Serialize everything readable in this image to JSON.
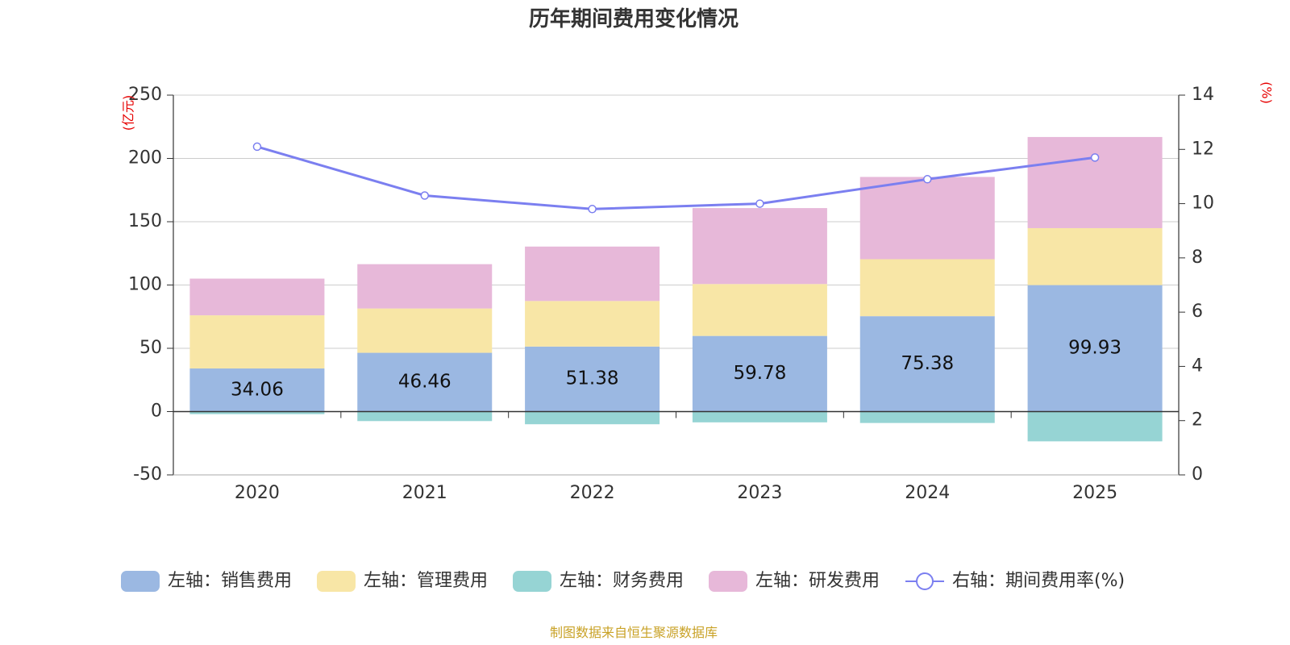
{
  "colors": {
    "sales": "#9bb8e2",
    "admin": "#f8e6a6",
    "finance": "#96d4d4",
    "rd": "#e7b8d9",
    "rate": "#7b7ff0",
    "unit": "#e60000",
    "footer": "#c9a227"
  },
  "chart_data": {
    "type": "bar",
    "stacked": true,
    "title": "历年期间费用变化情况",
    "categories": [
      "2020",
      "2021",
      "2022",
      "2023",
      "2024",
      "2025"
    ],
    "y_left": {
      "unit": "(亿元)",
      "min": -50,
      "max": 250,
      "ticks": [
        -50,
        0,
        50,
        100,
        150,
        200,
        250
      ]
    },
    "y_right": {
      "unit": "(%)",
      "min": 0,
      "max": 14,
      "ticks": [
        0,
        2,
        4,
        6,
        8,
        10,
        12,
        14
      ]
    },
    "series": [
      {
        "key": "sales",
        "name": "左轴：销售费用",
        "axis": "left",
        "values": [
          34.06,
          46.46,
          51.38,
          59.78,
          75.38,
          99.93
        ],
        "labels": [
          "34.06",
          "46.46",
          "51.38",
          "59.78",
          "75.38",
          "99.93"
        ]
      },
      {
        "key": "admin",
        "name": "左轴：管理费用",
        "axis": "left",
        "values": [
          42,
          35,
          36,
          41,
          45,
          45
        ]
      },
      {
        "key": "finance",
        "name": "左轴：财务费用",
        "axis": "left",
        "values": [
          -2,
          -7.5,
          -10,
          -8.5,
          -9,
          -23.5
        ]
      },
      {
        "key": "rd",
        "name": "左轴：研发费用",
        "axis": "left",
        "values": [
          29,
          35,
          43,
          60,
          65,
          72
        ]
      },
      {
        "key": "rate",
        "name": "右轴：期间费用率(%)",
        "axis": "right",
        "type": "line",
        "values": [
          12.1,
          10.3,
          9.8,
          10.0,
          10.9,
          11.7
        ]
      }
    ],
    "legend_position": "bottom",
    "grid": true
  },
  "footer": {
    "source": "制图数据来自恒生聚源数据库"
  }
}
